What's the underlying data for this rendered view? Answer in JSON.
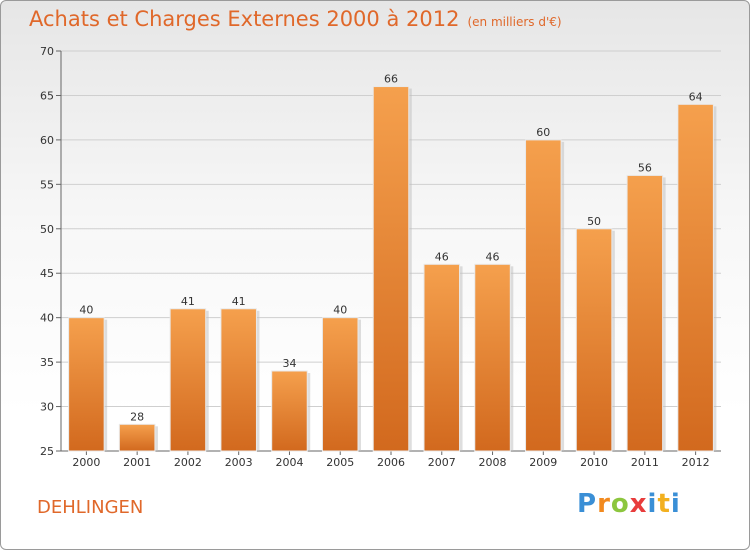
{
  "header": {
    "title": "Achats et Charges Externes 2000 à 2012",
    "unit": "(en milliers d'€)"
  },
  "footer": {
    "place": "DEHLINGEN",
    "logo_text": "Proxiti"
  },
  "colors": {
    "bar_top": "#f5a04d",
    "bar_bottom": "#d2691e",
    "title": "#e0682a"
  },
  "chart_data": {
    "type": "bar",
    "title": "Achats et Charges Externes 2000 à 2012",
    "subtitle": "(en milliers d'€)",
    "xlabel": "",
    "ylabel": "",
    "categories": [
      "2000",
      "2001",
      "2002",
      "2003",
      "2004",
      "2005",
      "2006",
      "2007",
      "2008",
      "2009",
      "2010",
      "2011",
      "2012"
    ],
    "values": [
      40,
      28,
      41,
      41,
      34,
      40,
      66,
      46,
      46,
      60,
      50,
      56,
      64
    ],
    "ylim": [
      25,
      70
    ],
    "yticks": [
      25,
      30,
      35,
      40,
      45,
      50,
      55,
      60,
      65,
      70
    ],
    "grid": true,
    "legend": "none"
  }
}
